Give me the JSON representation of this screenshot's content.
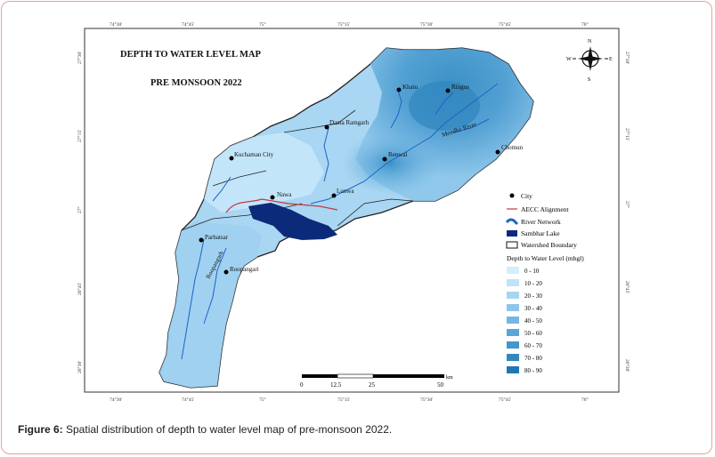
{
  "map": {
    "title_line1": "DEPTH TO WATER LEVEL MAP",
    "title_line2": "PRE MONSOON 2022",
    "top_ticks": [
      "74°30'",
      "74°45'",
      "75°",
      "75°15'",
      "75°30'",
      "75°45'",
      "76°"
    ],
    "bottom_ticks": [
      "74°30'",
      "74°45'",
      "75°",
      "75°15'",
      "75°30'",
      "75°45'",
      "76°"
    ],
    "left_ticks": [
      "27°30'",
      "27°15'",
      "27°",
      "26°45'",
      "26°30'"
    ],
    "right_ticks": [
      "27°30'",
      "27°15'",
      "27°",
      "26°45'",
      "26°30'"
    ],
    "cities": [
      "Khatu",
      "Ringus",
      "Danta Ramgarh",
      "Mendha River",
      "Renwal",
      "Chomun",
      "Kuchaman City",
      "Nawa",
      "Lunwa",
      "Parbatsar",
      "Roopangarh",
      "Roopangari"
    ],
    "north_arrow": {
      "n": "N",
      "s": "S",
      "e": "E",
      "w": "W"
    },
    "scale_bar": {
      "labels": [
        "0",
        "12.5",
        "25",
        "50"
      ],
      "unit": "km"
    }
  },
  "legend": {
    "items": [
      "City",
      "AECC Alignment",
      "River Network",
      "Sambhar Lake",
      "Watershed Boundary"
    ],
    "depth_title": "Depth to Water Level (mbgl)",
    "classes": [
      "0 - 10",
      "10 - 20",
      "20 - 30",
      "30 - 40",
      "40 - 50",
      "50 - 60",
      "60 - 70",
      "70 - 80",
      "80 - 90"
    ],
    "class_colors": [
      "#d4eefb",
      "#bfe3f7",
      "#a6d5f1",
      "#8dc6ea",
      "#74b7e2",
      "#5aa6d8",
      "#4496cc",
      "#3088bf",
      "#1f78b1"
    ]
  },
  "caption": {
    "label": "Figure 6:",
    "text": " Spatial distribution of depth to water level map of pre-monsoon 2022."
  }
}
